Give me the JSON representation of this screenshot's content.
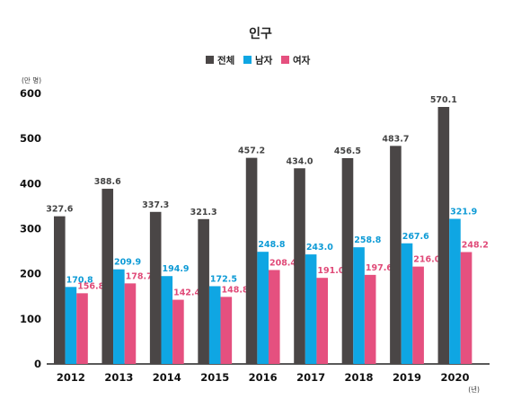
{
  "chart_data": {
    "type": "bar",
    "title": "인구",
    "ylabel": "(만 명)",
    "xlabel": "(년)",
    "categories": [
      "2012",
      "2013",
      "2014",
      "2015",
      "2016",
      "2017",
      "2018",
      "2019",
      "2020"
    ],
    "series": [
      {
        "name": "전체",
        "color": "#4a4646",
        "values": [
          327.6,
          388.6,
          337.3,
          321.3,
          457.2,
          434.0,
          456.5,
          483.7,
          570.1
        ],
        "labels": [
          "327.6",
          "388.6",
          "337.3",
          "321.3",
          "457.2",
          "434.0",
          "456.5",
          "483.7",
          "570.1"
        ]
      },
      {
        "name": "남자",
        "color": "#0fa6e3",
        "values": [
          170.8,
          209.9,
          194.9,
          172.5,
          248.8,
          243.0,
          258.8,
          267.6,
          321.9
        ],
        "labels": [
          "170.8",
          "209.9",
          "194.9",
          "172.5",
          "248.8",
          "243.0",
          "258.8",
          "267.6",
          "321.9"
        ]
      },
      {
        "name": "여자",
        "color": "#e5507f",
        "values": [
          156.8,
          178.7,
          142.4,
          148.8,
          208.4,
          191.0,
          197.6,
          216.0,
          248.2
        ],
        "labels": [
          "156.8",
          "178.7",
          "142.4",
          "148.8",
          "208.4",
          "191.0",
          "197.6",
          "216.0",
          "248.2"
        ]
      }
    ],
    "ylim": [
      0,
      600
    ],
    "yticks": [
      "0",
      "100",
      "200",
      "300",
      "400",
      "500",
      "600"
    ],
    "grid": false,
    "legend_position": "top-center"
  }
}
